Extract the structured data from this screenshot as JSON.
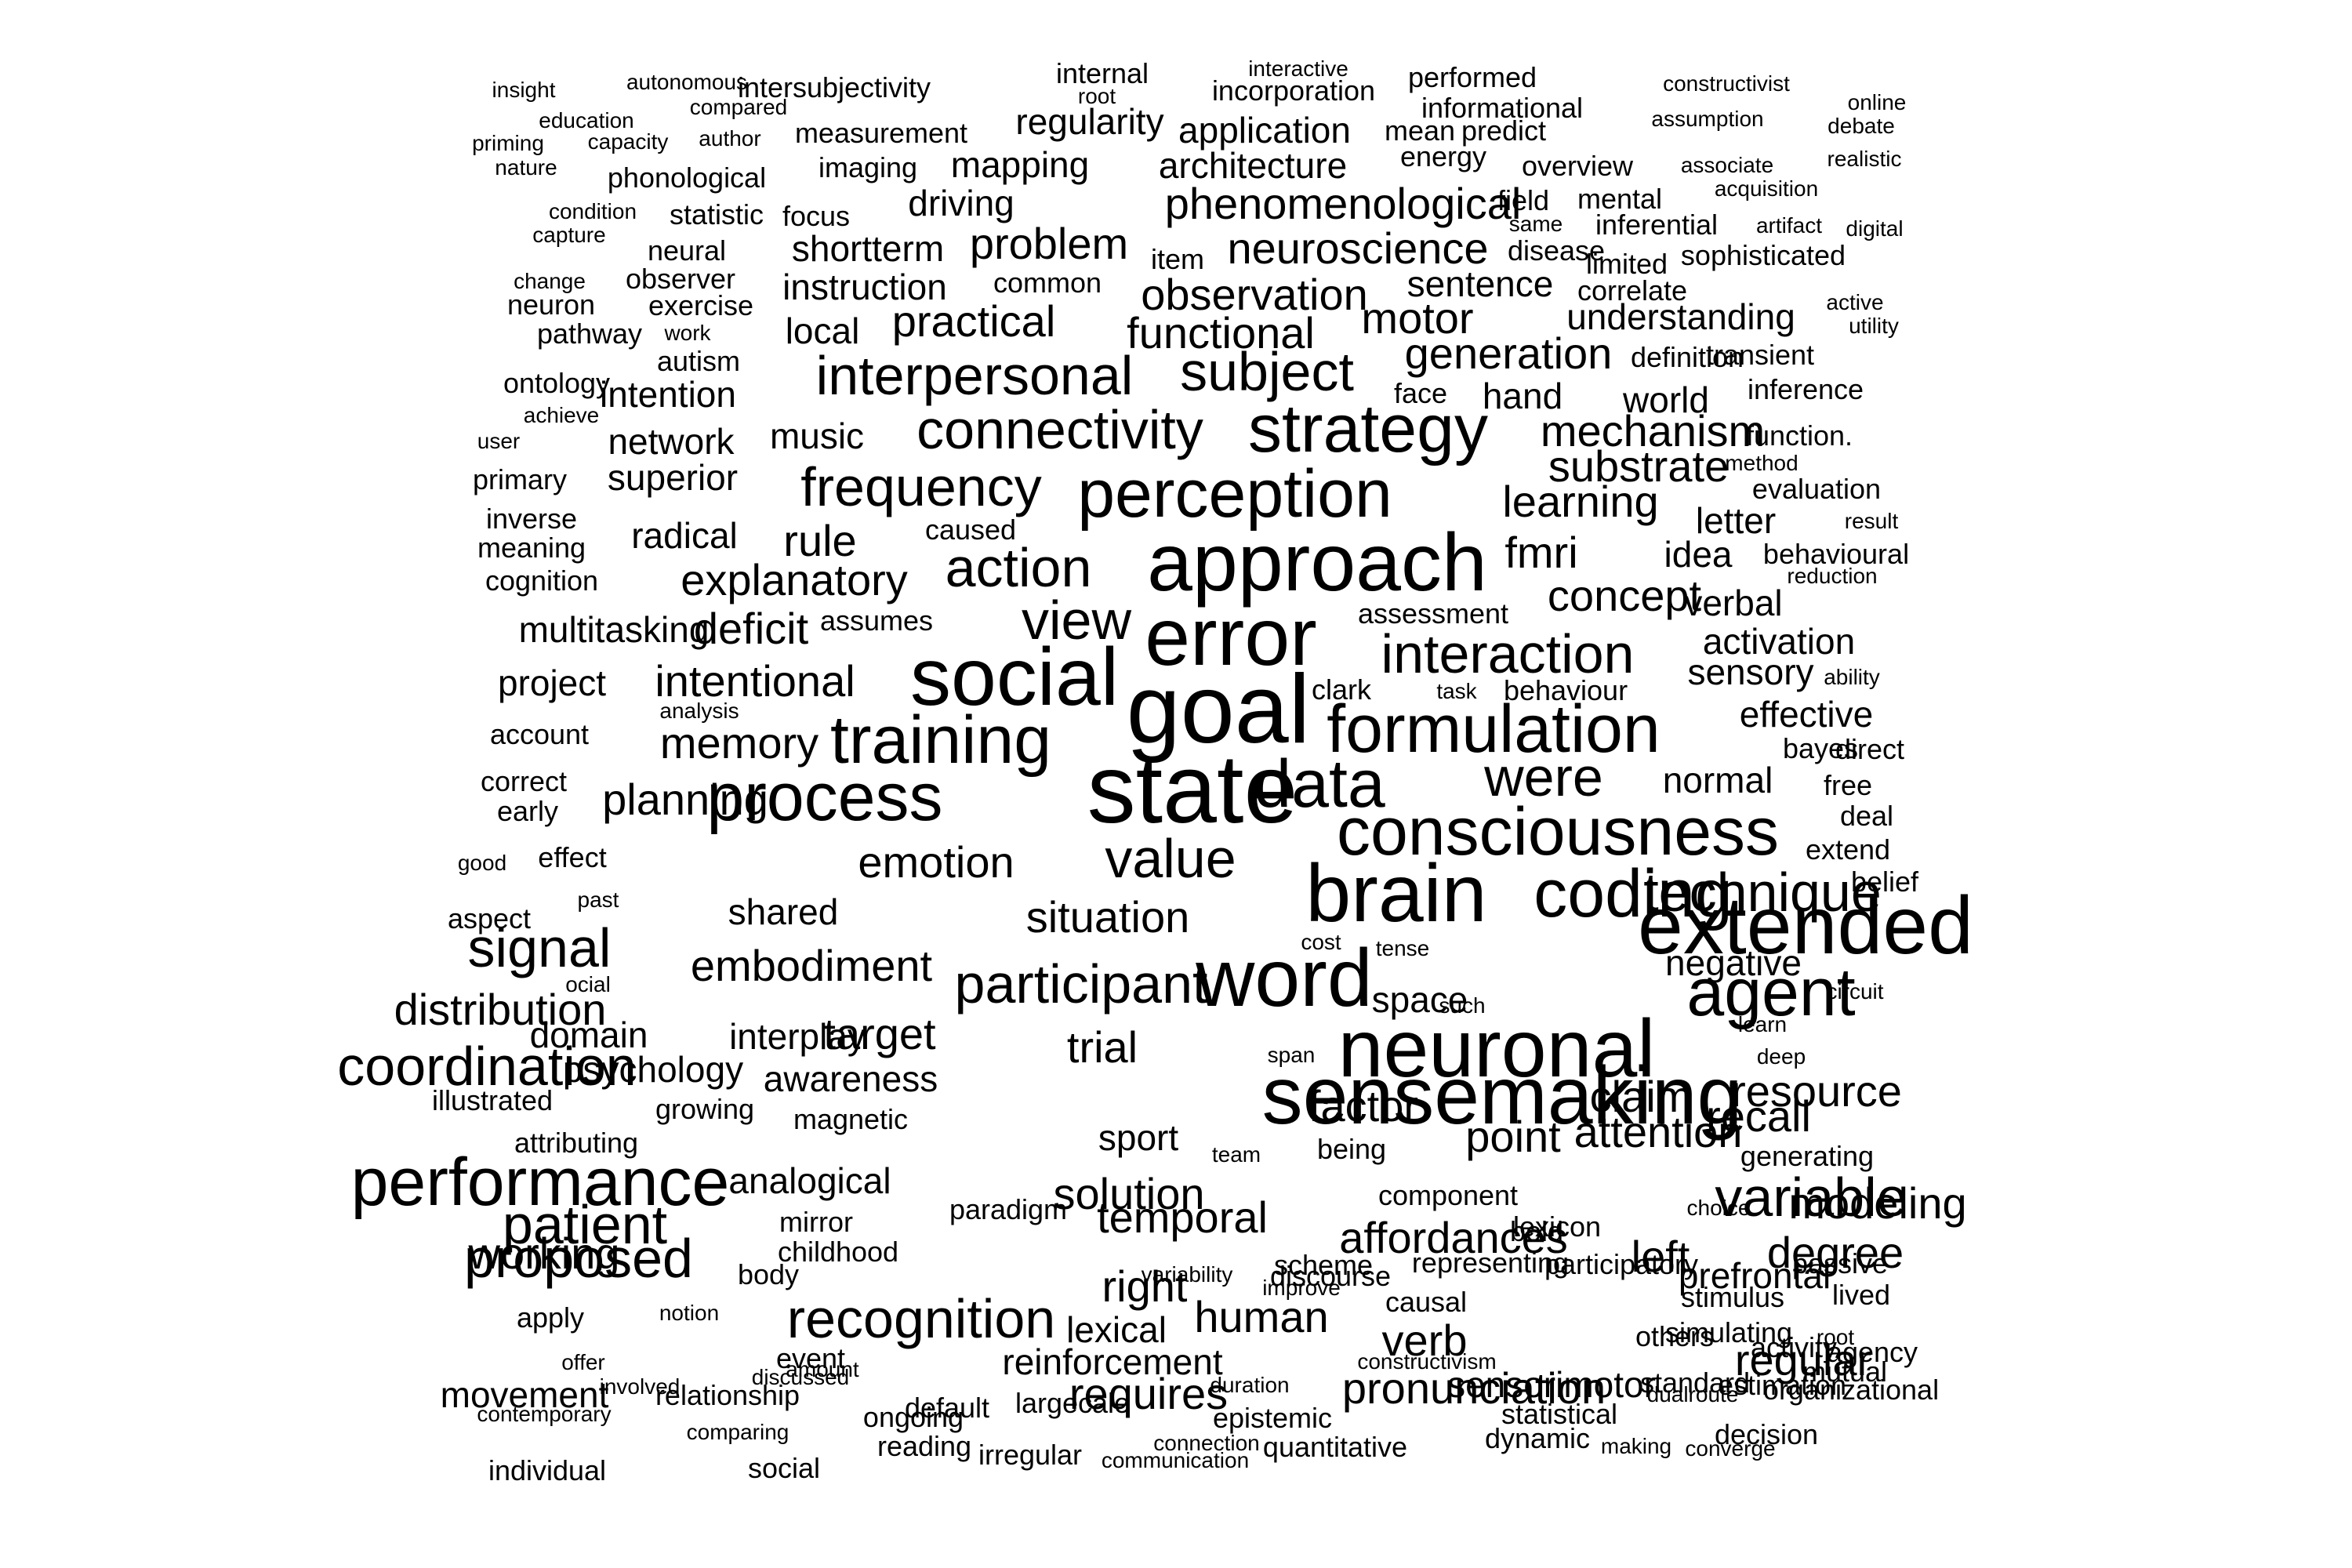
{
  "cloud": {
    "text_color": "#000000",
    "background": "#ffffff",
    "words": [
      {
        "text": "insight",
        "w": 1
      },
      {
        "text": "autonomous",
        "w": 1
      },
      {
        "text": "intersubjectivity",
        "w": 2
      },
      {
        "text": "internal",
        "w": 2
      },
      {
        "text": "interactive",
        "w": 1
      },
      {
        "text": "performed",
        "w": 2
      },
      {
        "text": "constructivist",
        "w": 1
      },
      {
        "text": "online",
        "w": 1
      },
      {
        "text": "root",
        "w": 1
      },
      {
        "text": "incorporation",
        "w": 2
      },
      {
        "text": "education",
        "w": 1
      },
      {
        "text": "compared",
        "w": 1
      },
      {
        "text": "measurement",
        "w": 2
      },
      {
        "text": "regularity",
        "w": 3
      },
      {
        "text": "application",
        "w": 3
      },
      {
        "text": "informational",
        "w": 2
      },
      {
        "text": "assumption",
        "w": 1
      },
      {
        "text": "debate",
        "w": 1
      },
      {
        "text": "priming",
        "w": 1
      },
      {
        "text": "capacity",
        "w": 1
      },
      {
        "text": "author",
        "w": 1
      },
      {
        "text": "mean",
        "w": 2
      },
      {
        "text": "predict",
        "w": 2
      },
      {
        "text": "nature",
        "w": 1
      },
      {
        "text": "imaging",
        "w": 2
      },
      {
        "text": "mapping",
        "w": 3
      },
      {
        "text": "architecture",
        "w": 3
      },
      {
        "text": "energy",
        "w": 2
      },
      {
        "text": "overview",
        "w": 2
      },
      {
        "text": "associate",
        "w": 1
      },
      {
        "text": "realistic",
        "w": 1
      },
      {
        "text": "phonological",
        "w": 2
      },
      {
        "text": "acquisition",
        "w": 1
      },
      {
        "text": "phenomenological",
        "w": 4
      },
      {
        "text": "driving",
        "w": 3
      },
      {
        "text": "field",
        "w": 2
      },
      {
        "text": "mental",
        "w": 2
      },
      {
        "text": "condition",
        "w": 1
      },
      {
        "text": "statistic",
        "w": 2
      },
      {
        "text": "focus",
        "w": 2
      },
      {
        "text": "capture",
        "w": 1
      },
      {
        "text": "same",
        "w": 1
      },
      {
        "text": "inferential",
        "w": 2
      },
      {
        "text": "artifact",
        "w": 1
      },
      {
        "text": "digital",
        "w": 1
      },
      {
        "text": "neural",
        "w": 2
      },
      {
        "text": "shortterm",
        "w": 3
      },
      {
        "text": "problem",
        "w": 4
      },
      {
        "text": "item",
        "w": 2
      },
      {
        "text": "neuroscience",
        "w": 4
      },
      {
        "text": "disease",
        "w": 2
      },
      {
        "text": "sophisticated",
        "w": 2
      },
      {
        "text": "limited",
        "w": 2
      },
      {
        "text": "change",
        "w": 1
      },
      {
        "text": "observer",
        "w": 2
      },
      {
        "text": "instruction",
        "w": 3
      },
      {
        "text": "common",
        "w": 2
      },
      {
        "text": "observation",
        "w": 4
      },
      {
        "text": "sentence",
        "w": 3
      },
      {
        "text": "correlate",
        "w": 2
      },
      {
        "text": "neuron",
        "w": 2
      },
      {
        "text": "exercise",
        "w": 2
      },
      {
        "text": "active",
        "w": 1
      },
      {
        "text": "practical",
        "w": 4
      },
      {
        "text": "motor",
        "w": 4
      },
      {
        "text": "understanding",
        "w": 3
      },
      {
        "text": "utility",
        "w": 1
      },
      {
        "text": "pathway",
        "w": 2
      },
      {
        "text": "work",
        "w": 1
      },
      {
        "text": "local",
        "w": 3
      },
      {
        "text": "functional",
        "w": 4
      },
      {
        "text": "generation",
        "w": 4
      },
      {
        "text": "transient",
        "w": 2
      },
      {
        "text": "definition",
        "w": 2
      },
      {
        "text": "autism",
        "w": 2
      },
      {
        "text": "interpersonal",
        "w": 5
      },
      {
        "text": "subject",
        "w": 5
      },
      {
        "text": "ontology",
        "w": 2
      },
      {
        "text": "intention",
        "w": 3
      },
      {
        "text": "face",
        "w": 2
      },
      {
        "text": "hand",
        "w": 3
      },
      {
        "text": "world",
        "w": 3
      },
      {
        "text": "inference",
        "w": 2
      },
      {
        "text": "achieve",
        "w": 1
      },
      {
        "text": "connectivity",
        "w": 5
      },
      {
        "text": "strategy",
        "w": 6
      },
      {
        "text": "mechanism",
        "w": 4
      },
      {
        "text": "music",
        "w": 3
      },
      {
        "text": "user",
        "w": 1
      },
      {
        "text": "network",
        "w": 3
      },
      {
        "text": "function.",
        "w": 2
      },
      {
        "text": "method",
        "w": 1
      },
      {
        "text": "substrate",
        "w": 4
      },
      {
        "text": "primary",
        "w": 2
      },
      {
        "text": "superior",
        "w": 3
      },
      {
        "text": "frequency",
        "w": 5
      },
      {
        "text": "perception",
        "w": 6
      },
      {
        "text": "evaluation",
        "w": 2
      },
      {
        "text": "learning",
        "w": 4
      },
      {
        "text": "inverse",
        "w": 2
      },
      {
        "text": "caused",
        "w": 2
      },
      {
        "text": "letter",
        "w": 3
      },
      {
        "text": "result",
        "w": 1
      },
      {
        "text": "meaning",
        "w": 2
      },
      {
        "text": "radical",
        "w": 3
      },
      {
        "text": "rule",
        "w": 4
      },
      {
        "text": "approach",
        "w": 7
      },
      {
        "text": "fmri",
        "w": 4
      },
      {
        "text": "idea",
        "w": 3
      },
      {
        "text": "behavioural",
        "w": 2
      },
      {
        "text": "cognition",
        "w": 2
      },
      {
        "text": "action",
        "w": 5
      },
      {
        "text": "reduction",
        "w": 1
      },
      {
        "text": "explanatory",
        "w": 4
      },
      {
        "text": "concept",
        "w": 4
      },
      {
        "text": "verbal",
        "w": 3
      },
      {
        "text": "multitasking",
        "w": 3
      },
      {
        "text": "deficit",
        "w": 4
      },
      {
        "text": "assumes",
        "w": 2
      },
      {
        "text": "view",
        "w": 5
      },
      {
        "text": "assessment",
        "w": 2
      },
      {
        "text": "error",
        "w": 7
      },
      {
        "text": "activation",
        "w": 3
      },
      {
        "text": "interaction",
        "w": 5
      },
      {
        "text": "sensory",
        "w": 3
      },
      {
        "text": "project",
        "w": 3
      },
      {
        "text": "intentional",
        "w": 4
      },
      {
        "text": "social",
        "w": 7
      },
      {
        "text": "ability",
        "w": 1
      },
      {
        "text": "clark",
        "w": 2
      },
      {
        "text": "task",
        "w": 1
      },
      {
        "text": "behaviour",
        "w": 2
      },
      {
        "text": "analysis",
        "w": 1
      },
      {
        "text": "goal",
        "w": 8
      },
      {
        "text": "effective",
        "w": 3
      },
      {
        "text": "account",
        "w": 2
      },
      {
        "text": "memory",
        "w": 4
      },
      {
        "text": "training",
        "w": 6
      },
      {
        "text": "formulation",
        "w": 6
      },
      {
        "text": "bayes",
        "w": 2
      },
      {
        "text": "direct",
        "w": 2
      },
      {
        "text": "correct",
        "w": 2
      },
      {
        "text": "were",
        "w": 5
      },
      {
        "text": "normal",
        "w": 3
      },
      {
        "text": "free",
        "w": 2
      },
      {
        "text": "early",
        "w": 2
      },
      {
        "text": "planning",
        "w": 4
      },
      {
        "text": "process",
        "w": 6
      },
      {
        "text": "state",
        "w": 8
      },
      {
        "text": "data",
        "w": 6
      },
      {
        "text": "deal",
        "w": 2
      },
      {
        "text": "consciousness",
        "w": 6
      },
      {
        "text": "extend",
        "w": 2
      },
      {
        "text": "good",
        "w": 1
      },
      {
        "text": "effect",
        "w": 2
      },
      {
        "text": "emotion",
        "w": 4
      },
      {
        "text": "value",
        "w": 5
      },
      {
        "text": "brain",
        "w": 7
      },
      {
        "text": "coding",
        "w": 6
      },
      {
        "text": "technique",
        "w": 5
      },
      {
        "text": "belief",
        "w": 2
      },
      {
        "text": "past",
        "w": 1
      },
      {
        "text": "shared",
        "w": 3
      },
      {
        "text": "situation",
        "w": 4
      },
      {
        "text": "extended",
        "w": 7
      },
      {
        "text": "aspect",
        "w": 2
      },
      {
        "text": "cost",
        "w": 1
      },
      {
        "text": "tense",
        "w": 1
      },
      {
        "text": "signal",
        "w": 5
      },
      {
        "text": "negative",
        "w": 3
      },
      {
        "text": "embodiment",
        "w": 4
      },
      {
        "text": "participant",
        "w": 5
      },
      {
        "text": "word",
        "w": 7
      },
      {
        "text": "agent",
        "w": 6
      },
      {
        "text": "circuit",
        "w": 1
      },
      {
        "text": "ocial",
        "w": 1
      },
      {
        "text": "space",
        "w": 3
      },
      {
        "text": "such",
        "w": 1
      },
      {
        "text": "distribution",
        "w": 4
      },
      {
        "text": "learn",
        "w": 1
      },
      {
        "text": "domain",
        "w": 3
      },
      {
        "text": "interplay",
        "w": 3
      },
      {
        "text": "target",
        "w": 4
      },
      {
        "text": "trial",
        "w": 4
      },
      {
        "text": "neuronal",
        "w": 7
      },
      {
        "text": "coordination",
        "w": 5
      },
      {
        "text": "span",
        "w": 1
      },
      {
        "text": "deep",
        "w": 1
      },
      {
        "text": "psychology",
        "w": 3
      },
      {
        "text": "awareness",
        "w": 3
      },
      {
        "text": "factor",
        "w": 4
      },
      {
        "text": "sensemaking",
        "w": 7
      },
      {
        "text": "claim",
        "w": 4
      },
      {
        "text": "resource",
        "w": 4
      },
      {
        "text": "illustrated",
        "w": 2
      },
      {
        "text": "growing",
        "w": 2
      },
      {
        "text": "recall",
        "w": 4
      },
      {
        "text": "magnetic",
        "w": 2
      },
      {
        "text": "point",
        "w": 4
      },
      {
        "text": "attention",
        "w": 4
      },
      {
        "text": "sport",
        "w": 3
      },
      {
        "text": "team",
        "w": 1
      },
      {
        "text": "attributing",
        "w": 2
      },
      {
        "text": "being",
        "w": 2
      },
      {
        "text": "generating",
        "w": 2
      },
      {
        "text": "performance",
        "w": 6
      },
      {
        "text": "analogical",
        "w": 3
      },
      {
        "text": "solution",
        "w": 4
      },
      {
        "text": "component",
        "w": 2
      },
      {
        "text": "variable",
        "w": 5
      },
      {
        "text": "mirror",
        "w": 2
      },
      {
        "text": "lexicon",
        "w": 2
      },
      {
        "text": "choice",
        "w": 1
      },
      {
        "text": "modeling",
        "w": 4
      },
      {
        "text": "patient",
        "w": 5
      },
      {
        "text": "paradigm",
        "w": 2
      },
      {
        "text": "temporal",
        "w": 4
      },
      {
        "text": "bold",
        "w": 2
      },
      {
        "text": "affordances",
        "w": 4
      },
      {
        "text": "childhood",
        "w": 2
      },
      {
        "text": "scheme",
        "w": 2
      },
      {
        "text": "passive",
        "w": 2
      },
      {
        "text": "variability",
        "w": 1
      },
      {
        "text": "discourse",
        "w": 2
      },
      {
        "text": "prefrontal",
        "w": 3
      },
      {
        "text": "degree",
        "w": 4
      },
      {
        "text": "proposed",
        "w": 5
      },
      {
        "text": "body",
        "w": 2
      },
      {
        "text": "representing",
        "w": 2
      },
      {
        "text": "left",
        "w": 4
      },
      {
        "text": "working",
        "w": 4
      },
      {
        "text": "right",
        "w": 4
      },
      {
        "text": "improve",
        "w": 1
      },
      {
        "text": "participatory",
        "w": 2
      },
      {
        "text": "stimulus",
        "w": 2
      },
      {
        "text": "lived",
        "w": 2
      },
      {
        "text": "apply",
        "w": 2
      },
      {
        "text": "notion",
        "w": 1
      },
      {
        "text": "causal",
        "w": 2
      },
      {
        "text": "lexical",
        "w": 3
      },
      {
        "text": "recognition",
        "w": 5
      },
      {
        "text": "human",
        "w": 4
      },
      {
        "text": "verb",
        "w": 4
      },
      {
        "text": "root",
        "w": 1
      },
      {
        "text": "others",
        "w": 2
      },
      {
        "text": "simulating",
        "w": 2
      },
      {
        "text": "agency",
        "w": 2
      },
      {
        "text": "offer",
        "w": 1
      },
      {
        "text": "event",
        "w": 2
      },
      {
        "text": "reinforcement",
        "w": 3
      },
      {
        "text": "regular",
        "w": 4
      },
      {
        "text": "requires",
        "w": 4
      },
      {
        "text": "duration",
        "w": 1
      },
      {
        "text": "constructivism",
        "w": 1
      },
      {
        "text": "activity",
        "w": 2
      },
      {
        "text": "mutual",
        "w": 2
      },
      {
        "text": "involved",
        "w": 1
      },
      {
        "text": "amount",
        "w": 1
      },
      {
        "text": "standard",
        "w": 2
      },
      {
        "text": "movement",
        "w": 3
      },
      {
        "text": "pronunciation",
        "w": 4
      },
      {
        "text": "sensorimotor",
        "w": 3
      },
      {
        "text": "organizational",
        "w": 2
      },
      {
        "text": "discussed",
        "w": 1
      },
      {
        "text": "estimation",
        "w": 2
      },
      {
        "text": "dualroute",
        "w": 1
      },
      {
        "text": "relationship",
        "w": 2
      },
      {
        "text": "default",
        "w": 2
      },
      {
        "text": "largecale",
        "w": 2
      },
      {
        "text": "epistemic",
        "w": 2
      },
      {
        "text": "statistical",
        "w": 2
      },
      {
        "text": "contemporary",
        "w": 1
      },
      {
        "text": "ongoing",
        "w": 2
      },
      {
        "text": "decision",
        "w": 2
      },
      {
        "text": "comparing",
        "w": 1
      },
      {
        "text": "connection",
        "w": 1
      },
      {
        "text": "dynamic",
        "w": 2
      },
      {
        "text": "quantitative",
        "w": 2
      },
      {
        "text": "making",
        "w": 1
      },
      {
        "text": "converge",
        "w": 1
      },
      {
        "text": "reading",
        "w": 2
      },
      {
        "text": "irregular",
        "w": 2
      },
      {
        "text": "individual",
        "w": 2
      },
      {
        "text": "social",
        "w": 2
      },
      {
        "text": "communication",
        "w": 1
      }
    ]
  }
}
